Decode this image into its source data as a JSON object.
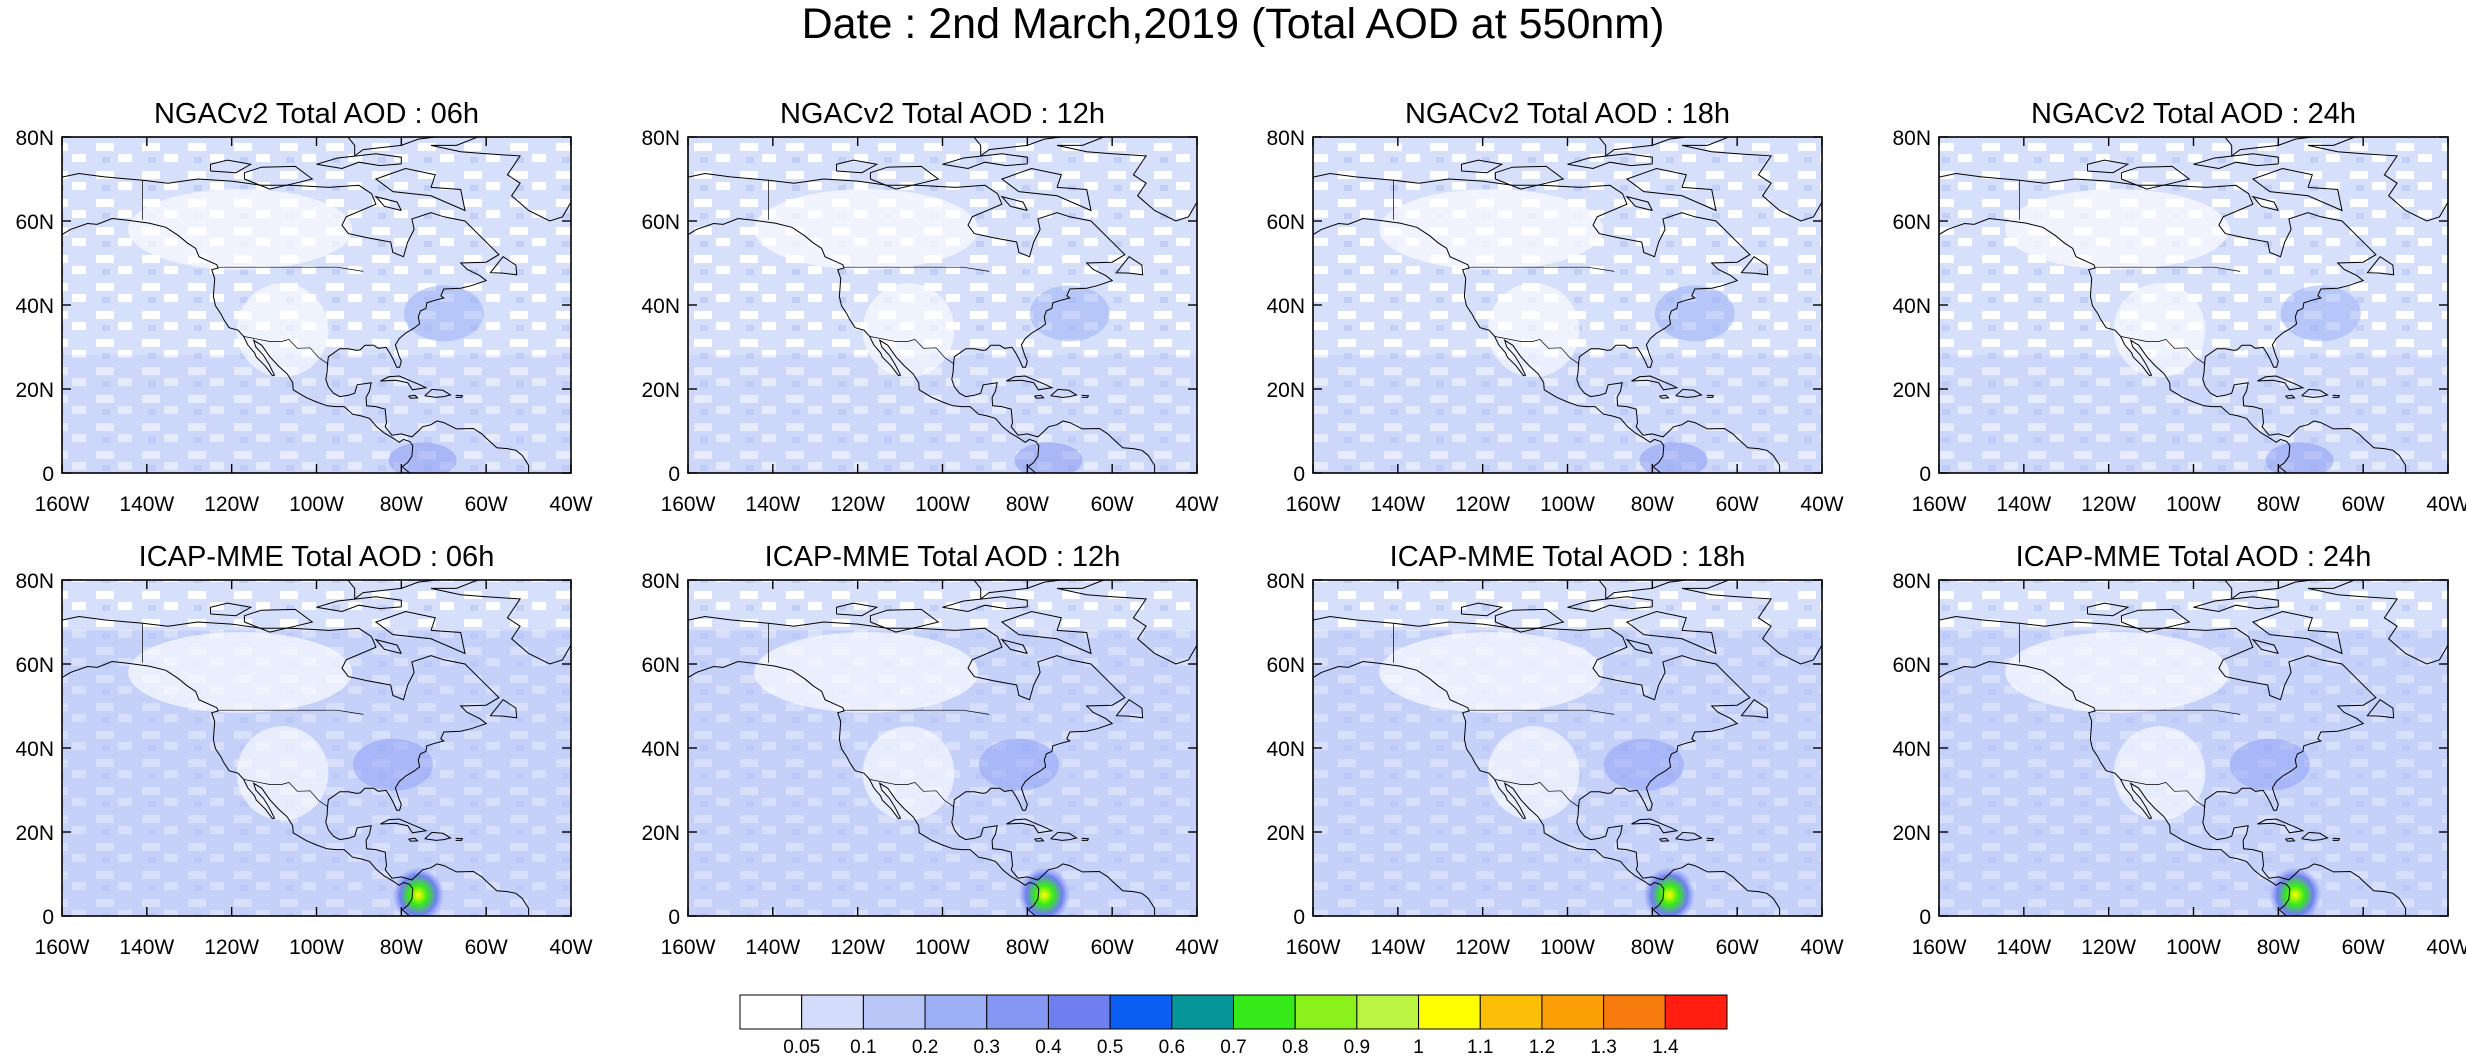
{
  "title": "Date : 2nd March,2019 (Total AOD at 550nm)",
  "map": {
    "lon_range": [
      -160,
      -40
    ],
    "lat_range": [
      0,
      80
    ],
    "lon_ticks": [
      "160W",
      "140W",
      "120W",
      "100W",
      "80W",
      "60W",
      "40W"
    ],
    "lat_ticks": [
      "0",
      "20N",
      "40N",
      "60N",
      "80N"
    ]
  },
  "panels": [
    {
      "title": "NGACv2 Total AOD : 06h",
      "model": "NGACv2",
      "hour": "06h"
    },
    {
      "title": "NGACv2 Total AOD : 12h",
      "model": "NGACv2",
      "hour": "12h"
    },
    {
      "title": "NGACv2 Total AOD : 18h",
      "model": "NGACv2",
      "hour": "18h"
    },
    {
      "title": "NGACv2 Total AOD : 24h",
      "model": "NGACv2",
      "hour": "24h"
    },
    {
      "title": "ICAP-MME Total AOD : 06h",
      "model": "ICAP-MME",
      "hour": "06h"
    },
    {
      "title": "ICAP-MME Total AOD : 12h",
      "model": "ICAP-MME",
      "hour": "12h"
    },
    {
      "title": "ICAP-MME Total AOD : 18h",
      "model": "ICAP-MME",
      "hour": "18h"
    },
    {
      "title": "ICAP-MME Total AOD : 24h",
      "model": "ICAP-MME",
      "hour": "24h"
    }
  ],
  "colorbar": {
    "labels": [
      "0.05",
      "0.1",
      "0.2",
      "0.3",
      "0.4",
      "0.5",
      "0.6",
      "0.7",
      "0.8",
      "0.9",
      "1",
      "1.1",
      "1.2",
      "1.3",
      "1.4"
    ],
    "colors": [
      "#ffffff",
      "#d4dcfb",
      "#b7c5f7",
      "#9db0f5",
      "#8597f3",
      "#6f7ff0",
      "#0a5ff2",
      "#06969a",
      "#36ea1a",
      "#8bf11c",
      "#bbf443",
      "#ffff00",
      "#fcbf07",
      "#fb9f06",
      "#f77a0d",
      "#ff1e0f"
    ]
  }
}
